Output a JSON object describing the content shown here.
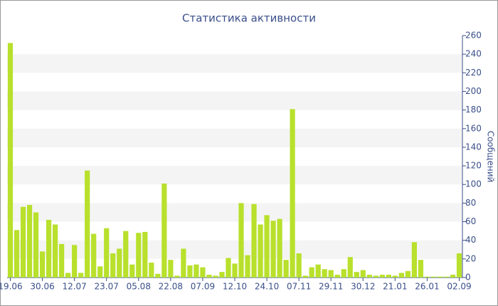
{
  "chart_data": {
    "type": "bar",
    "title": "Статистика активности",
    "y_label": "Сообщений",
    "categories": [
      "19.06",
      null,
      null,
      null,
      null,
      "30.06",
      null,
      null,
      null,
      null,
      "12.07",
      null,
      null,
      null,
      null,
      "23.07",
      null,
      null,
      null,
      null,
      "05.08",
      null,
      null,
      null,
      null,
      "22.08",
      null,
      null,
      null,
      null,
      "07.09",
      null,
      null,
      null,
      null,
      "12.10",
      null,
      null,
      null,
      null,
      "24.10",
      null,
      null,
      null,
      null,
      "07.11",
      null,
      null,
      null,
      null,
      "29.11",
      null,
      null,
      null,
      null,
      "30.12",
      null,
      null,
      null,
      null,
      "21.01",
      null,
      null,
      null,
      null,
      "26.01",
      null,
      null,
      null,
      null,
      "02.09"
    ],
    "values": [
      252,
      51,
      76,
      78,
      70,
      28,
      62,
      57,
      36,
      5,
      35,
      5,
      115,
      47,
      12,
      53,
      26,
      31,
      50,
      14,
      48,
      49,
      16,
      4,
      101,
      19,
      2,
      31,
      13,
      14,
      11,
      3,
      2,
      6,
      21,
      15,
      80,
      24,
      79,
      57,
      67,
      61,
      63,
      19,
      181,
      26,
      2,
      11,
      14,
      9,
      8,
      3,
      9,
      22,
      6,
      8,
      3,
      2,
      3,
      3,
      2,
      5,
      7,
      38,
      19,
      1,
      1,
      1,
      1,
      3,
      26
    ],
    "color": "#b8e02c",
    "ylim": [
      0,
      260
    ],
    "yticks": [
      0,
      20,
      40,
      60,
      80,
      100,
      120,
      140,
      160,
      180,
      200,
      220,
      240,
      260
    ],
    "grid": true
  }
}
